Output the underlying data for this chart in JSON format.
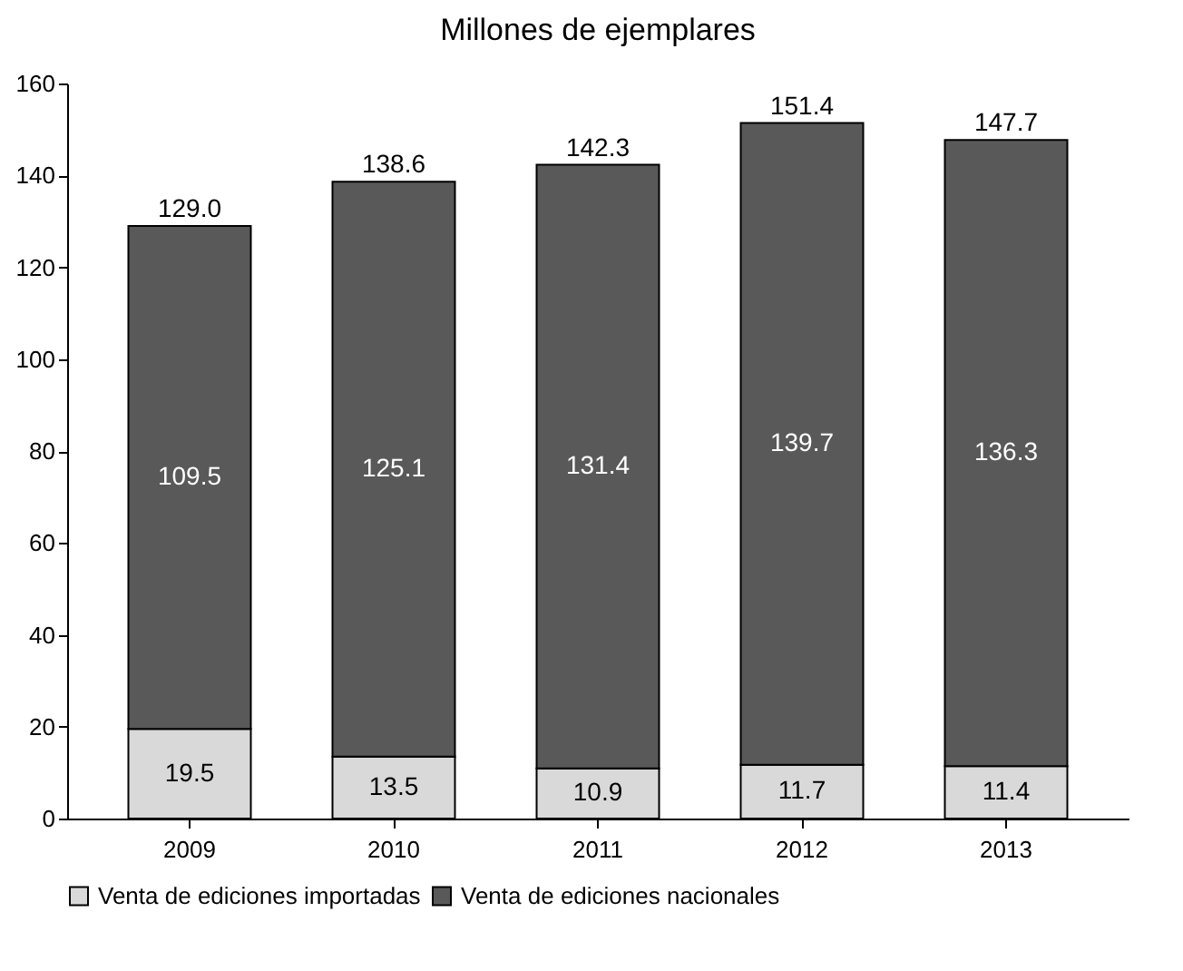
{
  "chart_data": {
    "type": "bar",
    "title": "Millones de ejemplares",
    "categories": [
      "2009",
      "2010",
      "2011",
      "2012",
      "2013"
    ],
    "stacked": true,
    "series": [
      {
        "name": "Venta de ediciones importadas",
        "color": "#d9d9d9",
        "values": [
          19.5,
          13.5,
          10.9,
          11.7,
          11.4
        ]
      },
      {
        "name": "Venta de ediciones nacionales",
        "color": "#595959",
        "values": [
          109.5,
          125.1,
          131.4,
          139.7,
          136.3
        ]
      }
    ],
    "ylim": [
      0,
      160
    ],
    "yticks": [
      0,
      20,
      40,
      60,
      80,
      100,
      120,
      140,
      160
    ],
    "data_labels": true,
    "totals": [
      "129.0",
      "138.6",
      "142.3",
      "151.4",
      "147.7"
    ],
    "grid": false,
    "legend": "bottom"
  }
}
